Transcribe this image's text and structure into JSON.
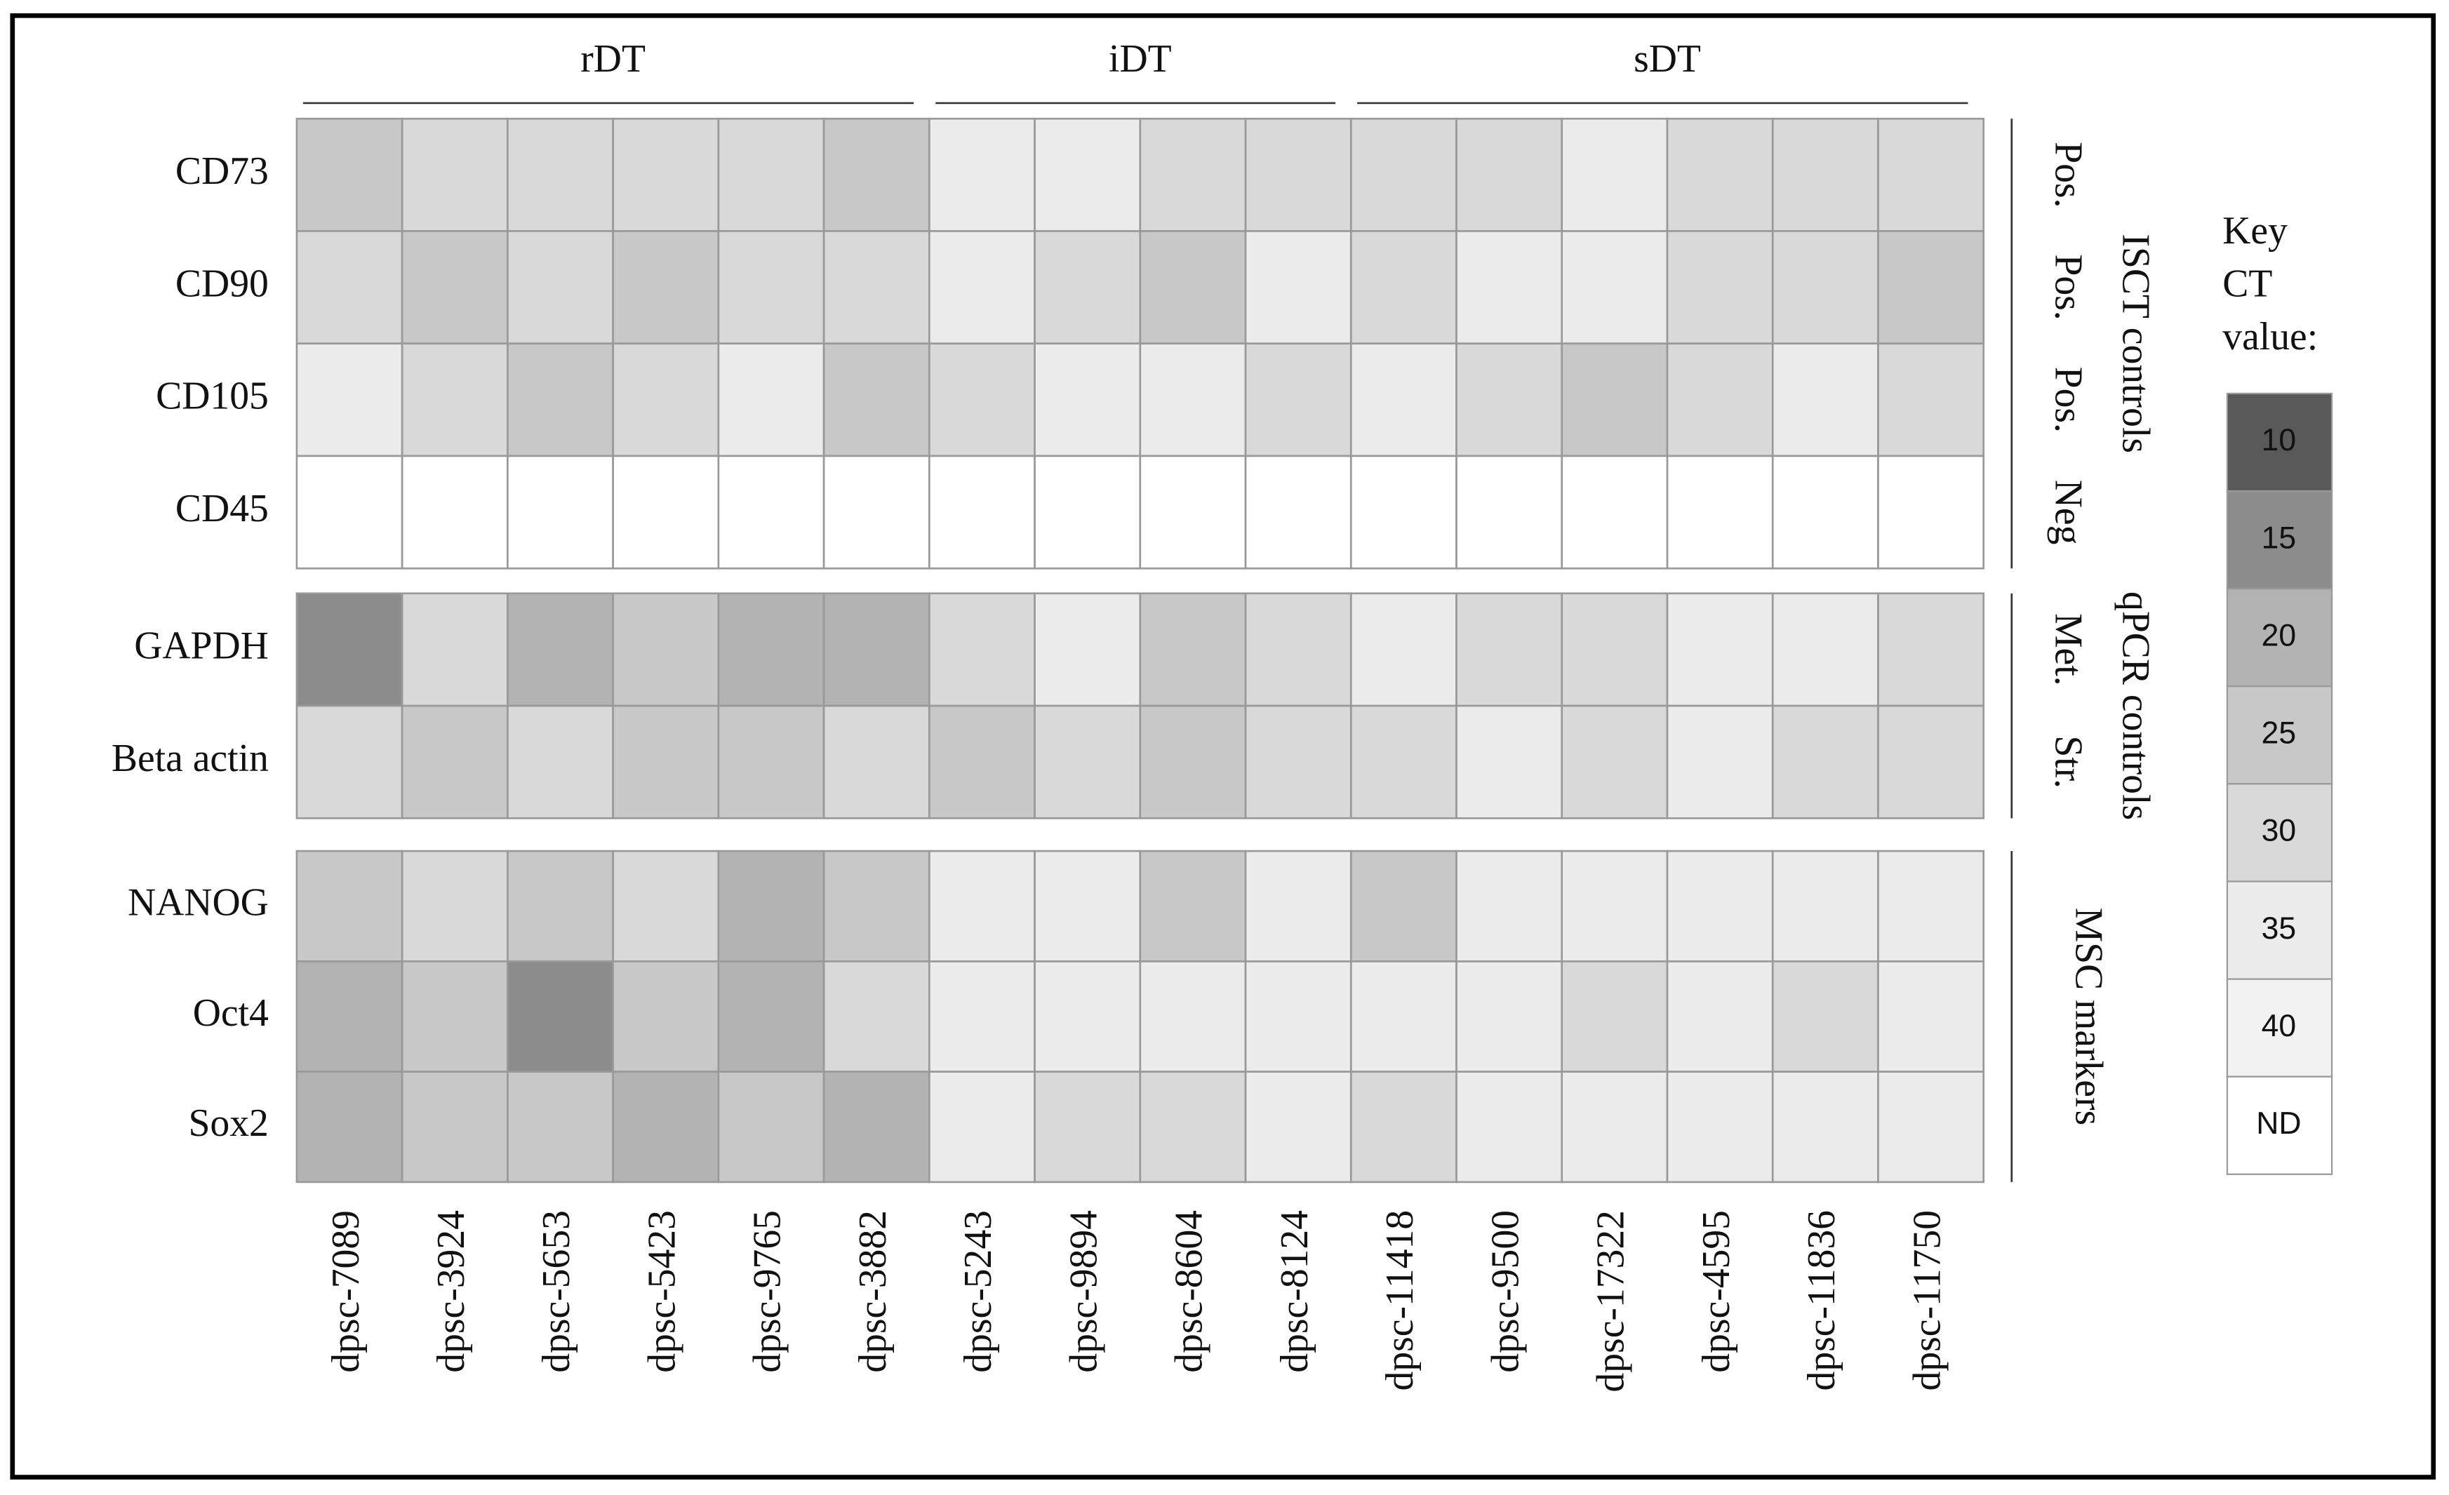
{
  "chart_data": {
    "type": "heatmap",
    "column_groups": [
      {
        "name": "rDT",
        "categories": [
          "dpsc-7089",
          "dpsc-3924",
          "dpsc-5653",
          "dpsc-5423",
          "dpsc-9765",
          "dpsc-3882"
        ]
      },
      {
        "name": "iDT",
        "categories": [
          "dpsc-5243",
          "dpsc-9894",
          "dpsc-8604",
          "dpsc-8124"
        ]
      },
      {
        "name": "sDT",
        "categories": [
          "dpsc-11418",
          "dpsc-9500",
          "dpsc-17322",
          "dpsc-4595",
          "dpsc-11836",
          "dpsc-11750"
        ]
      }
    ],
    "row_groups": [
      {
        "name": "ISCT controls",
        "rows": [
          {
            "name": "CD73",
            "sublabel": "Pos.",
            "values": [
              25,
              30,
              30,
              30,
              30,
              25,
              35,
              35,
              30,
              30,
              30,
              30,
              35,
              30,
              30,
              30
            ]
          },
          {
            "name": "CD90",
            "sublabel": "Pos.",
            "values": [
              30,
              25,
              30,
              25,
              30,
              30,
              35,
              30,
              25,
              35,
              30,
              35,
              35,
              30,
              30,
              25
            ]
          },
          {
            "name": "CD105",
            "sublabel": "Pos.",
            "values": [
              35,
              30,
              25,
              30,
              35,
              25,
              30,
              35,
              35,
              30,
              35,
              30,
              25,
              30,
              35,
              30
            ]
          },
          {
            "name": "CD45",
            "sublabel": "Neg",
            "values": [
              null,
              null,
              null,
              null,
              null,
              null,
              null,
              null,
              null,
              null,
              null,
              null,
              null,
              null,
              null,
              null
            ]
          }
        ]
      },
      {
        "name": "qPCR controls",
        "rows": [
          {
            "name": "GAPDH",
            "sublabel": "Met.",
            "values": [
              15,
              30,
              20,
              25,
              20,
              20,
              30,
              35,
              25,
              30,
              35,
              30,
              30,
              35,
              35,
              30
            ]
          },
          {
            "name": "Beta actin",
            "sublabel": "Str.",
            "values": [
              30,
              25,
              30,
              25,
              25,
              30,
              25,
              30,
              25,
              30,
              30,
              35,
              30,
              35,
              30,
              30
            ]
          }
        ]
      },
      {
        "name": "MSC markers",
        "rows": [
          {
            "name": "NANOG",
            "values": [
              25,
              30,
              25,
              30,
              20,
              25,
              35,
              35,
              25,
              35,
              25,
              35,
              35,
              35,
              35,
              35
            ]
          },
          {
            "name": "Oct4",
            "values": [
              20,
              25,
              15,
              25,
              20,
              30,
              35,
              35,
              35,
              35,
              35,
              35,
              30,
              35,
              30,
              35
            ]
          },
          {
            "name": "Sox2",
            "values": [
              20,
              25,
              25,
              20,
              25,
              20,
              35,
              30,
              30,
              35,
              30,
              35,
              35,
              35,
              35,
              35
            ]
          }
        ]
      }
    ],
    "legend": {
      "title": "Key CT value:",
      "levels": [
        10,
        15,
        20,
        25,
        30,
        35,
        40
      ],
      "colors": [
        "#595959",
        "#8c8c8c",
        "#b3b3b3",
        "#c8c8c8",
        "#d9d9d9",
        "#ececec",
        "#f2f2f2"
      ],
      "na_label": "ND",
      "na_color": "#ffffff"
    }
  }
}
